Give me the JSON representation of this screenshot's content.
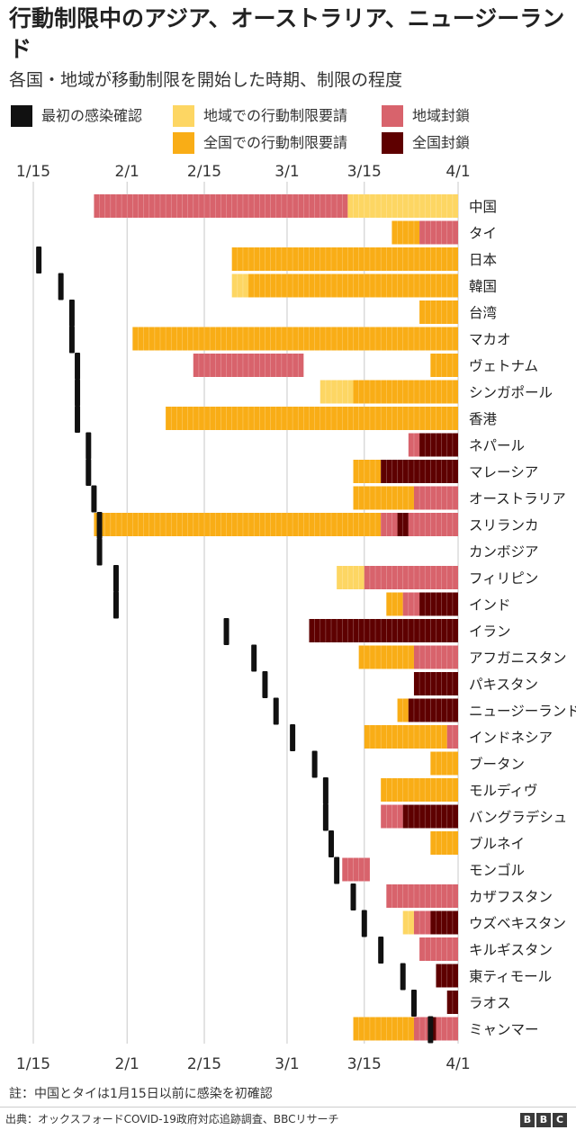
{
  "title": "行動制限中のアジア、オーストラリア、ニュージーランド",
  "subtitle": "各国・地域が移動制限を開始した時期、制限の程度",
  "legend": [
    {
      "key": "first_case",
      "label": "最初の感染確認",
      "color": "#111111"
    },
    {
      "key": "regional_advice",
      "label": "地域での行動制限要請",
      "color": "#fdd663"
    },
    {
      "key": "regional_lockdown",
      "label": "地域封鎖",
      "color": "#d8636c"
    },
    {
      "key": "national_advice",
      "label": "全国での行動制限要請",
      "color": "#f9ad16"
    },
    {
      "key": "national_lockdown",
      "label": "全国封鎖",
      "color": "#5e0000"
    }
  ],
  "note": "註：中国とタイは1月15日以前に感染を初確認",
  "source": "出典：オックスフォードCOVID-19政府対応追跡調査、BBCリサーチ",
  "brand": [
    "B",
    "B",
    "C"
  ],
  "chart_data": {
    "type": "timeline",
    "x_unit": "day (1 = 1月15日)",
    "x_range": [
      0,
      78
    ],
    "x_ticks": [
      {
        "day": 0,
        "label": "1/15"
      },
      {
        "day": 17,
        "label": "2/1"
      },
      {
        "day": 31,
        "label": "2/15"
      },
      {
        "day": 46,
        "label": "3/1"
      },
      {
        "day": 60,
        "label": "3/15"
      },
      {
        "day": 77,
        "label": "4/1"
      }
    ],
    "grid": true,
    "rows": [
      {
        "name": "中国",
        "first_case": null,
        "segments": [
          [
            11,
            57,
            "regional_lockdown"
          ],
          [
            57,
            77,
            "regional_advice"
          ]
        ]
      },
      {
        "name": "タイ",
        "first_case": null,
        "segments": [
          [
            65,
            70,
            "national_advice"
          ],
          [
            70,
            77,
            "regional_lockdown"
          ]
        ]
      },
      {
        "name": "日本",
        "first_case": 1,
        "segments": [
          [
            36,
            77,
            "national_advice"
          ]
        ]
      },
      {
        "name": "韓国",
        "first_case": 5,
        "segments": [
          [
            36,
            39,
            "regional_advice"
          ],
          [
            39,
            77,
            "national_advice"
          ]
        ]
      },
      {
        "name": "台湾",
        "first_case": 7,
        "segments": [
          [
            70,
            77,
            "national_advice"
          ]
        ]
      },
      {
        "name": "マカオ",
        "first_case": 7,
        "segments": [
          [
            18,
            77,
            "national_advice"
          ]
        ]
      },
      {
        "name": "ヴェトナム",
        "first_case": 8,
        "segments": [
          [
            29,
            49,
            "regional_lockdown"
          ],
          [
            72,
            77,
            "national_advice"
          ]
        ]
      },
      {
        "name": "シンガポール",
        "first_case": 8,
        "segments": [
          [
            52,
            58,
            "regional_advice"
          ],
          [
            58,
            77,
            "national_advice"
          ]
        ]
      },
      {
        "name": "香港",
        "first_case": 8,
        "segments": [
          [
            24,
            77,
            "national_advice"
          ]
        ]
      },
      {
        "name": "ネパール",
        "first_case": 10,
        "segments": [
          [
            68,
            70,
            "regional_lockdown"
          ],
          [
            70,
            77,
            "national_lockdown"
          ]
        ]
      },
      {
        "name": "マレーシア",
        "first_case": 10,
        "segments": [
          [
            58,
            63,
            "national_advice"
          ],
          [
            63,
            77,
            "national_lockdown"
          ]
        ]
      },
      {
        "name": "オーストラリア",
        "first_case": 11,
        "segments": [
          [
            58,
            69,
            "national_advice"
          ],
          [
            69,
            77,
            "regional_lockdown"
          ]
        ]
      },
      {
        "name": "スリランカ",
        "first_case": 12,
        "segments": [
          [
            11,
            63,
            "national_advice"
          ],
          [
            63,
            66,
            "regional_lockdown"
          ],
          [
            66,
            68,
            "national_lockdown"
          ],
          [
            68,
            77,
            "regional_lockdown"
          ]
        ]
      },
      {
        "name": "カンボジア",
        "first_case": 12,
        "segments": []
      },
      {
        "name": "フィリピン",
        "first_case": 15,
        "segments": [
          [
            55,
            60,
            "regional_advice"
          ],
          [
            60,
            77,
            "regional_lockdown"
          ]
        ]
      },
      {
        "name": "インド",
        "first_case": 15,
        "segments": [
          [
            64,
            67,
            "national_advice"
          ],
          [
            67,
            70,
            "regional_lockdown"
          ],
          [
            70,
            77,
            "national_lockdown"
          ]
        ]
      },
      {
        "name": "イラン",
        "first_case": 35,
        "segments": [
          [
            50,
            77,
            "national_lockdown"
          ]
        ]
      },
      {
        "name": "アフガニスタン",
        "first_case": 40,
        "segments": [
          [
            59,
            69,
            "national_advice"
          ],
          [
            69,
            77,
            "regional_lockdown"
          ]
        ]
      },
      {
        "name": "パキスタン",
        "first_case": 42,
        "segments": [
          [
            69,
            77,
            "national_lockdown"
          ]
        ]
      },
      {
        "name": "ニュージーランド",
        "first_case": 44,
        "segments": [
          [
            66,
            68,
            "national_advice"
          ],
          [
            68,
            77,
            "national_lockdown"
          ]
        ]
      },
      {
        "name": "インドネシア",
        "first_case": 47,
        "segments": [
          [
            60,
            75,
            "national_advice"
          ],
          [
            75,
            77,
            "regional_lockdown"
          ]
        ]
      },
      {
        "name": "ブータン",
        "first_case": 51,
        "segments": [
          [
            72,
            77,
            "national_advice"
          ]
        ]
      },
      {
        "name": "モルディヴ",
        "first_case": 53,
        "segments": [
          [
            63,
            77,
            "national_advice"
          ]
        ]
      },
      {
        "name": "バングラデシュ",
        "first_case": 53,
        "segments": [
          [
            63,
            67,
            "regional_lockdown"
          ],
          [
            67,
            77,
            "national_lockdown"
          ]
        ]
      },
      {
        "name": "ブルネイ",
        "first_case": 54,
        "segments": [
          [
            72,
            77,
            "national_advice"
          ]
        ]
      },
      {
        "name": "モンゴル",
        "first_case": 55,
        "segments": [
          [
            56,
            61,
            "regional_lockdown"
          ]
        ]
      },
      {
        "name": "カザフスタン",
        "first_case": 58,
        "segments": [
          [
            64,
            77,
            "regional_lockdown"
          ]
        ]
      },
      {
        "name": "ウズベキスタン",
        "first_case": 60,
        "segments": [
          [
            67,
            69,
            "regional_advice"
          ],
          [
            69,
            72,
            "regional_lockdown"
          ],
          [
            72,
            77,
            "national_lockdown"
          ]
        ]
      },
      {
        "name": "キルギスタン",
        "first_case": 63,
        "segments": [
          [
            70,
            77,
            "regional_lockdown"
          ]
        ]
      },
      {
        "name": "東ティモール",
        "first_case": 67,
        "segments": [
          [
            73,
            77,
            "national_lockdown"
          ]
        ]
      },
      {
        "name": "ラオス",
        "first_case": 69,
        "segments": [
          [
            75,
            77,
            "national_lockdown"
          ]
        ]
      },
      {
        "name": "ミャンマー",
        "first_case": 72,
        "segments": [
          [
            58,
            69,
            "national_advice"
          ],
          [
            69,
            72,
            "regional_lockdown"
          ],
          [
            72,
            73,
            "national_lockdown"
          ],
          [
            73,
            77,
            "regional_lockdown"
          ]
        ]
      }
    ]
  }
}
